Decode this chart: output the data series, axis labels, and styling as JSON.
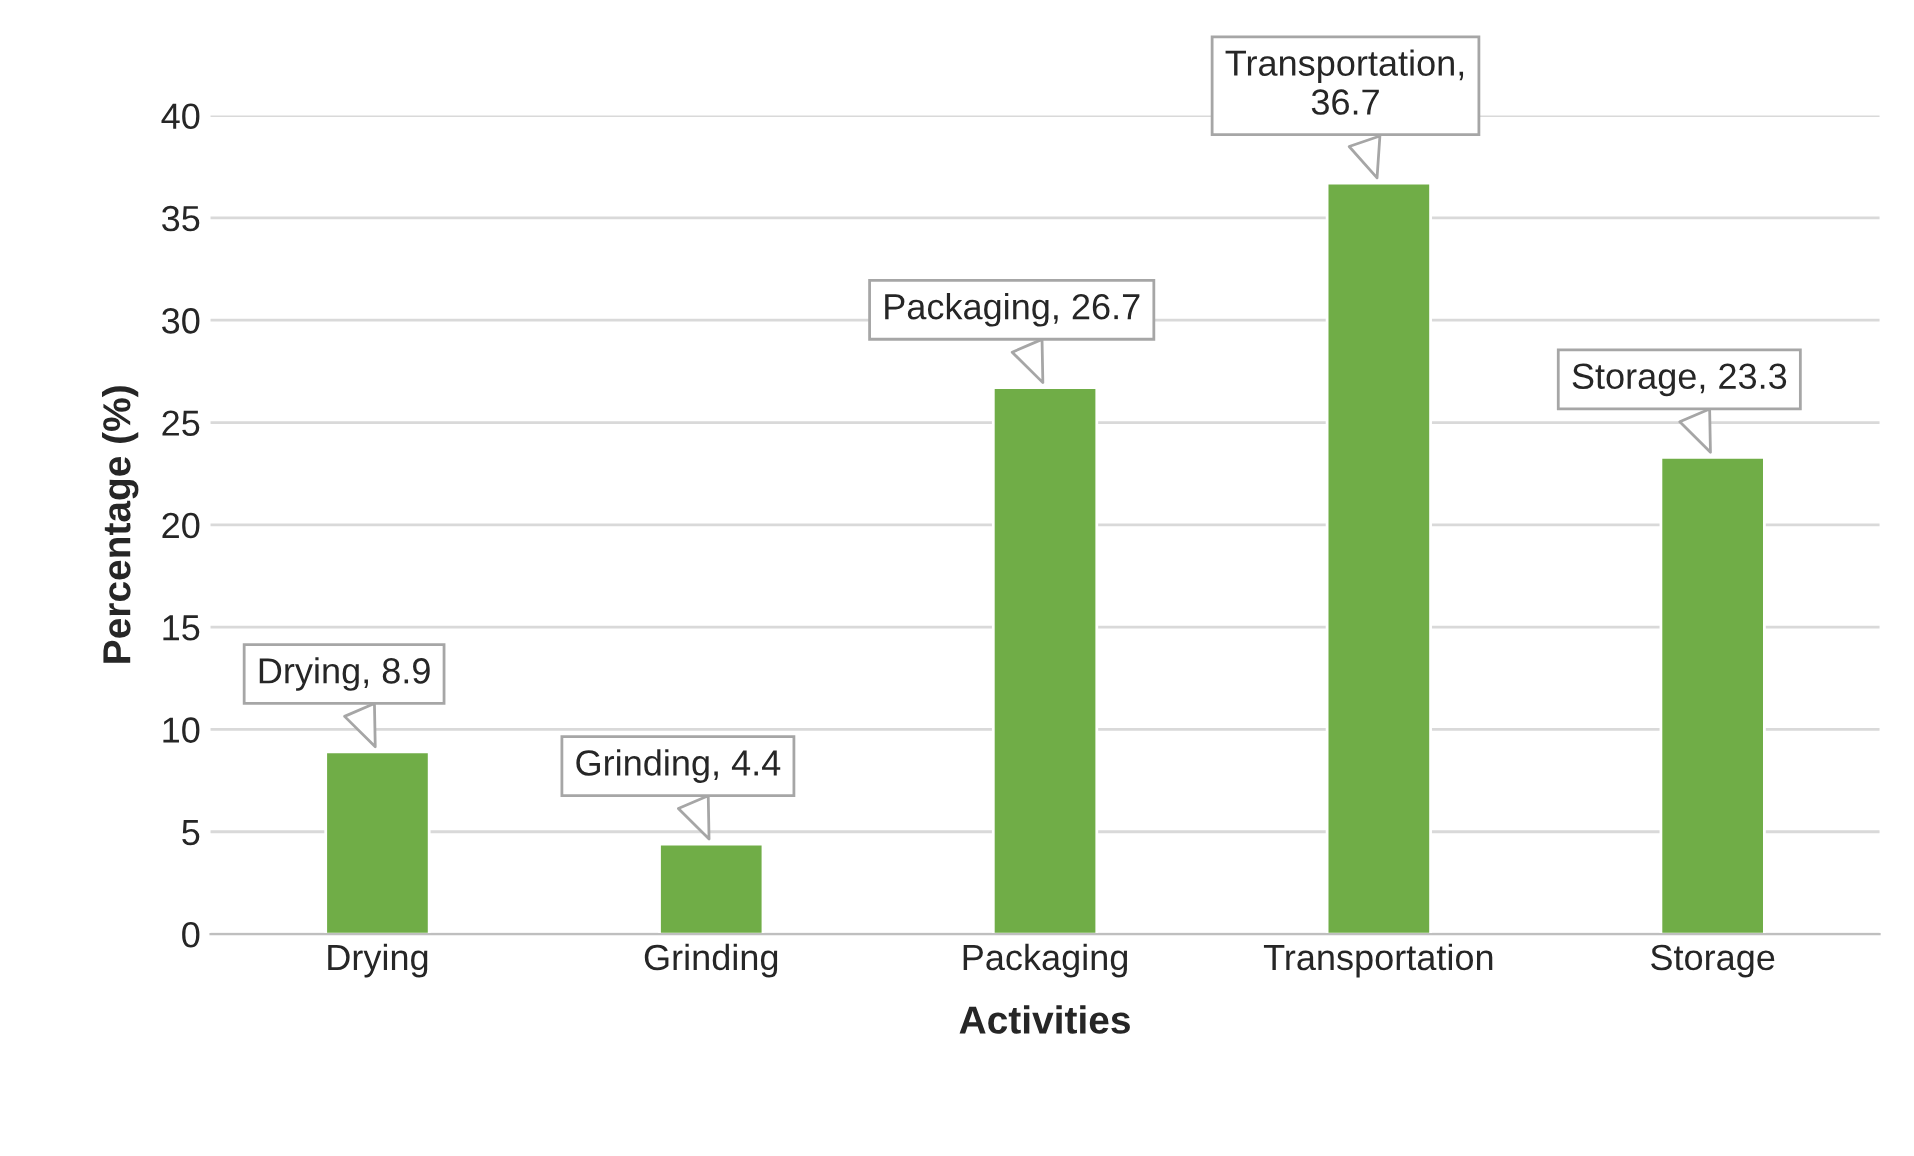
{
  "chart_data": {
    "type": "bar",
    "xlabel": "Activities",
    "ylabel": "Percentage (%)",
    "categories": [
      "Drying",
      "Grinding",
      "Packaging",
      "Transportation",
      "Storage"
    ],
    "values": [
      8.9,
      4.4,
      26.7,
      36.7,
      23.3
    ],
    "value_labels": [
      "Drying, 8.9",
      "Grinding, 4.4",
      "Packaging, 26.7",
      "Transportation,\n36.7",
      "Storage, 23.3"
    ],
    "color": "#70ad47",
    "ylim": [
      0,
      40
    ],
    "yticks": [
      0,
      5,
      10,
      15,
      20,
      25,
      30,
      35,
      40
    ],
    "grid": "y"
  }
}
